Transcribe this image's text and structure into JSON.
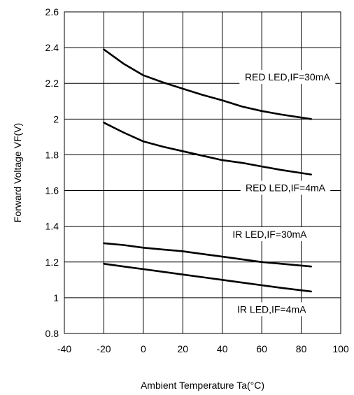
{
  "chart_data": {
    "type": "line",
    "title": "",
    "xlabel": "Ambient Temperature Ta(°C)",
    "ylabel": "Forward Voltage VF(V)",
    "xlim": [
      -40,
      100
    ],
    "ylim": [
      0.8,
      2.6
    ],
    "x_ticks": [
      "-40",
      "-20",
      "0",
      "20",
      "40",
      "60",
      "80",
      "100"
    ],
    "y_ticks": [
      "0.8",
      "1",
      "1.2",
      "1.4",
      "1.6",
      "1.8",
      "2",
      "2.2",
      "2.4",
      "2.6"
    ],
    "grid": true,
    "series": [
      {
        "name": "RED LED,IF=30mA",
        "x": [
          -20,
          -10,
          0,
          10,
          20,
          30,
          40,
          50,
          60,
          70,
          85
        ],
        "y": [
          2.39,
          2.31,
          2.245,
          2.205,
          2.17,
          2.135,
          2.105,
          2.07,
          2.045,
          2.025,
          2.0
        ]
      },
      {
        "name": "RED LED,IF=4mA",
        "x": [
          -20,
          -10,
          0,
          10,
          20,
          30,
          40,
          50,
          60,
          70,
          85
        ],
        "y": [
          1.98,
          1.925,
          1.875,
          1.845,
          1.82,
          1.795,
          1.77,
          1.755,
          1.735,
          1.715,
          1.69
        ]
      },
      {
        "name": "IR LED,IF=30mA",
        "x": [
          -20,
          -10,
          0,
          10,
          20,
          30,
          40,
          50,
          60,
          70,
          85
        ],
        "y": [
          1.305,
          1.295,
          1.28,
          1.27,
          1.26,
          1.245,
          1.23,
          1.215,
          1.2,
          1.19,
          1.175
        ]
      },
      {
        "name": "IR LED,IF=4mA",
        "x": [
          -20,
          -10,
          0,
          10,
          20,
          30,
          40,
          50,
          60,
          70,
          85
        ],
        "y": [
          1.19,
          1.175,
          1.16,
          1.145,
          1.13,
          1.115,
          1.1,
          1.085,
          1.07,
          1.055,
          1.035
        ]
      }
    ],
    "annotations": [
      {
        "text": "RED LED,IF=30mA",
        "x": 73,
        "y": 2.22,
        "anchor": "middle"
      },
      {
        "text": "RED LED,IF=4mA",
        "x": 72,
        "y": 1.6,
        "anchor": "middle"
      },
      {
        "text": "IR LED,IF=30mA",
        "x": 64,
        "y": 1.34,
        "anchor": "middle"
      },
      {
        "text": "IR LED,IF=4mA",
        "x": 65,
        "y": 0.92,
        "anchor": "middle"
      }
    ],
    "line_color": "#000000",
    "grid_color": "#000000"
  }
}
